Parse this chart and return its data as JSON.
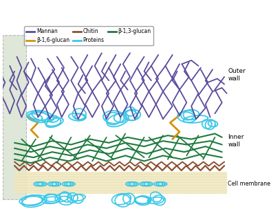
{
  "figsize": [
    3.94,
    3.1
  ],
  "dpi": 100,
  "colors": {
    "mannan": "#5B4A9C",
    "proteins": "#3CC8E8",
    "beta16": "#D4920A",
    "beta13": "#1E7A3C",
    "chitin": "#8B5030",
    "membrane_fill": "#F0E8C0",
    "membrane_line": "#C8B878",
    "left_bg": "#D0DDC8",
    "left_edge": "#A0A0A0"
  },
  "labels": {
    "mannan": "Mannan",
    "proteins": "Proteins",
    "beta16": "β-1,6-glucan",
    "beta13": "β-1,3-glucan",
    "chitin": "Chitin",
    "outer_wall": "Outer\nwall",
    "inner_wall": "Inner\nwall",
    "cell_membrane": "Cell membrane"
  }
}
